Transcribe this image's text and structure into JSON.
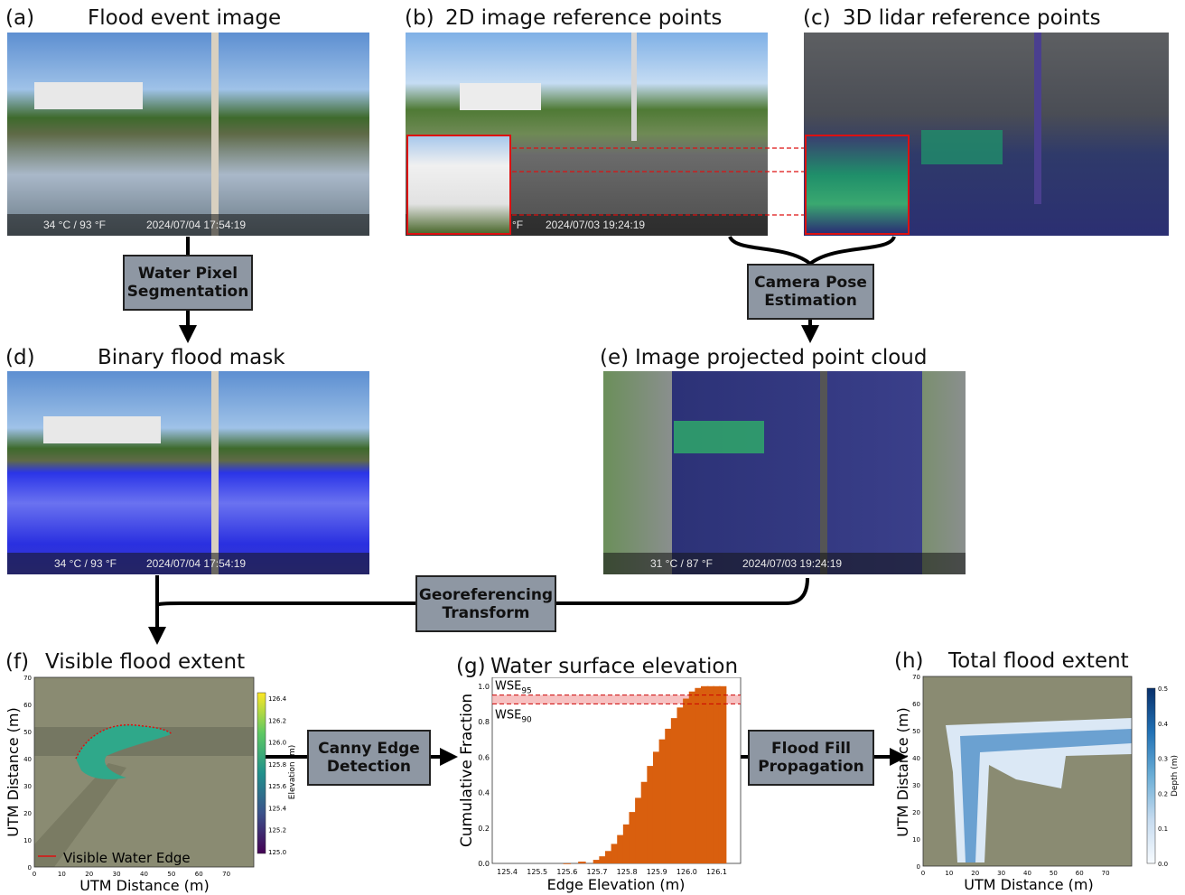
{
  "panels": {
    "a": {
      "letter": "(a)",
      "title": "Flood event image",
      "stamp_temp": "34 °C / 93 °F",
      "stamp_time": "2024/07/04 17:54:19"
    },
    "b": {
      "letter": "(b)",
      "title": "2D image reference points",
      "stamp_temp": "°F",
      "stamp_time": "2024/07/03 19:24:19"
    },
    "c": {
      "letter": "(c)",
      "title": "3D lidar reference points"
    },
    "d": {
      "letter": "(d)",
      "title": "Binary flood mask",
      "stamp_temp": "34 °C / 93 °F",
      "stamp_time": "2024/07/04 17:54:19"
    },
    "e": {
      "letter": "(e)",
      "title": "Image projected point cloud",
      "stamp_temp": "31 °C / 87 °F",
      "stamp_time": "2024/07/03 19:24:19"
    },
    "f": {
      "letter": "(f)",
      "title": "Visible  flood  extent",
      "legend": "Visible Water Edge",
      "xlabel": "UTM Distance (m)",
      "ylabel": "UTM Distance (m)",
      "colorbar_label": "Elevation (m)"
    },
    "g": {
      "letter": "(g)",
      "title": "Water surface elevation"
    },
    "h": {
      "letter": "(h)",
      "title": "Total flood extent",
      "xlabel": "UTM Distance (m)",
      "ylabel": "UTM Distance (m)",
      "colorbar_label": "Depth (m)"
    }
  },
  "process_boxes": {
    "water_pixel": "Water Pixel\nSegmentation",
    "camera_pose": "Camera Pose\nEstimation",
    "georef": "Georeferencing\nTransform",
    "canny": "Canny Edge\nDetection",
    "flood_fill": "Flood Fill\nPropagation"
  },
  "map_axes": {
    "x_ticks": [
      "0",
      "10",
      "20",
      "30",
      "40",
      "50",
      "60",
      "70"
    ],
    "y_ticks": [
      "0",
      "10",
      "20",
      "30",
      "40",
      "50",
      "60",
      "70"
    ]
  },
  "colorbar_f": {
    "ticks": [
      "125.0",
      "125.2",
      "125.4",
      "125.6",
      "125.8",
      "126.0",
      "126.2",
      "126.4"
    ],
    "colormap": [
      "#440154",
      "#3b528b",
      "#21918c",
      "#5ec962",
      "#fde725"
    ]
  },
  "colorbar_h": {
    "ticks": [
      "0.0",
      "0.1",
      "0.2",
      "0.3",
      "0.4",
      "0.5"
    ],
    "colormap": [
      "#f7fbff",
      "#c6dbef",
      "#6baed6",
      "#2171b5",
      "#08306b"
    ]
  },
  "chart_data": {
    "type": "bar",
    "title": "Water surface elevation",
    "xlabel": "Edge Elevation (m)",
    "ylabel": "Cumulative Fraction",
    "xlim": [
      125.35,
      126.18
    ],
    "ylim": [
      0,
      1.05
    ],
    "x_ticks": [
      "125.4",
      "125.5",
      "125.6",
      "125.7",
      "125.8",
      "125.9",
      "126.0",
      "126.1"
    ],
    "y_ticks": [
      "0.0",
      "0.2",
      "0.4",
      "0.6",
      "0.8",
      "1.0"
    ],
    "bar_color": "#d95f0e",
    "band_color": "#f4a6a6",
    "wse90_label": "WSE",
    "wse90_sub": "90",
    "wse95_label": "WSE",
    "wse95_sub": "95",
    "wse90": 0.9,
    "wse95": 0.95,
    "x": [
      125.6,
      125.65,
      125.7,
      125.72,
      125.74,
      125.76,
      125.78,
      125.8,
      125.82,
      125.84,
      125.86,
      125.88,
      125.9,
      125.92,
      125.94,
      125.96,
      125.98,
      126.0,
      126.02,
      126.04,
      126.06,
      126.08,
      126.1,
      126.12
    ],
    "values": [
      0.0,
      0.01,
      0.02,
      0.04,
      0.07,
      0.11,
      0.16,
      0.22,
      0.29,
      0.37,
      0.46,
      0.55,
      0.63,
      0.7,
      0.76,
      0.82,
      0.88,
      0.93,
      0.97,
      0.99,
      1.0,
      1.0,
      1.0,
      1.0
    ]
  }
}
